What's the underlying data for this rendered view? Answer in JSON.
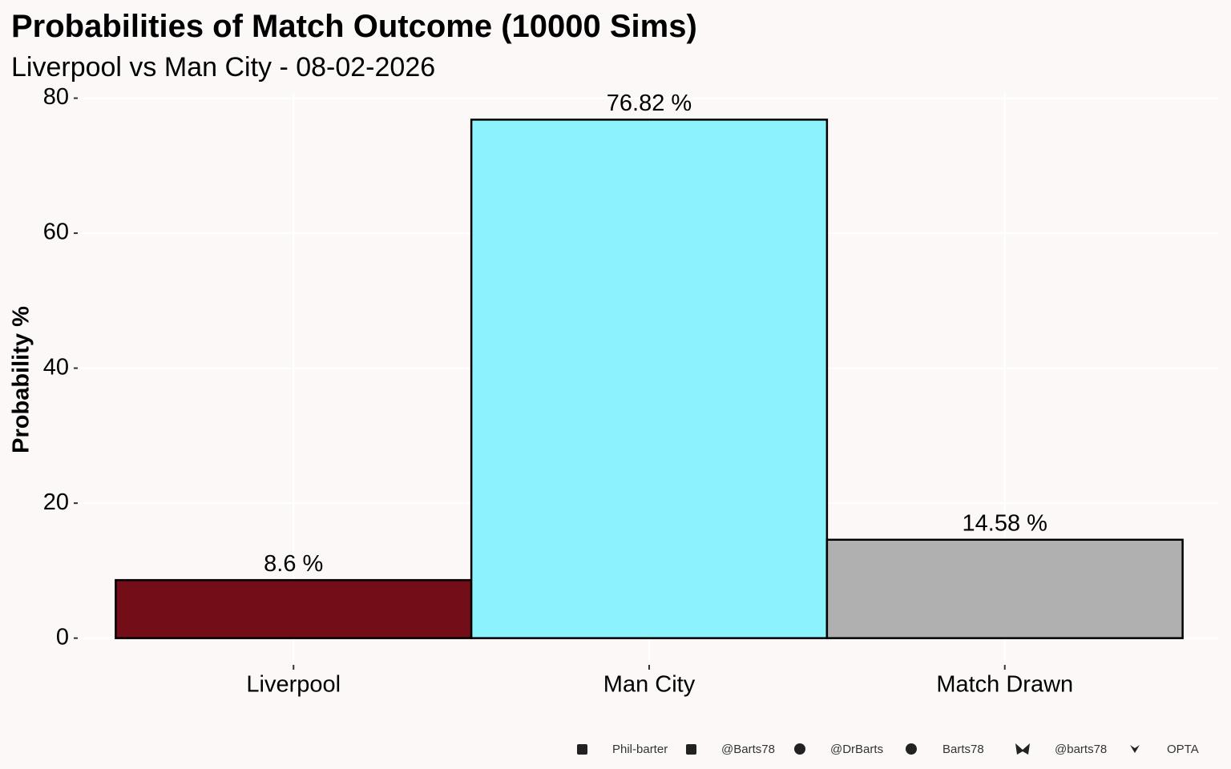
{
  "chart_data": {
    "type": "bar",
    "title": "Probabilities of Match Outcome (10000 Sims)",
    "subtitle": "Liverpool vs Man City - 08-02-2026",
    "y_label": "Probability %",
    "categories": [
      "Liverpool",
      "Man City",
      "Match Drawn"
    ],
    "values": [
      8.6,
      76.82,
      14.58
    ],
    "value_labels": [
      "8.6  %",
      "76.82  %",
      "14.58  %"
    ],
    "colors": [
      "#730e18",
      "#8cf3fd",
      "#b0b0b0"
    ],
    "ylim": [
      -3.841,
      80.661
    ],
    "yticks": [
      0,
      20,
      40,
      60,
      80
    ],
    "grid": true,
    "caption": [
      "Phil-barter",
      "@Barts78",
      "@DrBarts",
      "Barts78",
      "@barts78",
      "OPTA"
    ]
  }
}
